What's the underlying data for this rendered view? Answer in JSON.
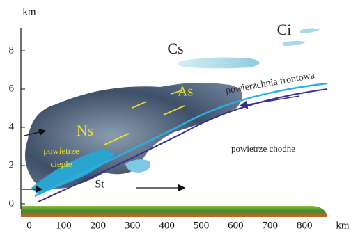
{
  "axes": {
    "y_unit": "km",
    "x_unit": "km",
    "y_ticks": [
      0,
      2,
      4,
      6,
      8
    ],
    "x_ticks": [
      0,
      100,
      200,
      300,
      400,
      500,
      600,
      700,
      800
    ]
  },
  "labels": {
    "ci": "Ci",
    "cs": "Cs",
    "as": "As",
    "ns": "Ns",
    "warm_air_1": "powietrze",
    "warm_air_2": "ciepłe",
    "st": "St",
    "front_surface": "powierzchnia frontowa",
    "cold_air": "powietrze chodne"
  }
}
